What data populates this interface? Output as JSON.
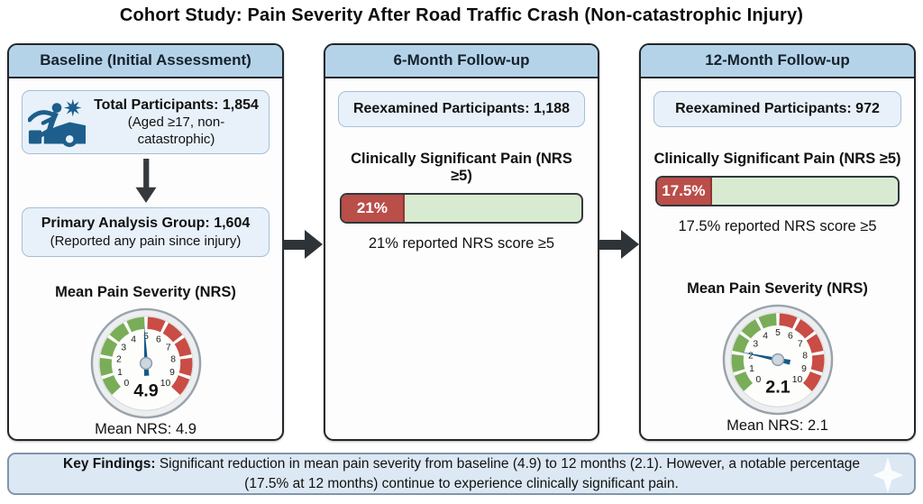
{
  "title": "Cohort Study: Pain Severity After Road Traffic Crash (Non-catastrophic Injury)",
  "colors": {
    "header_bg": "#b5d3e8",
    "panel_border": "#20262b",
    "box_bg": "#e8f1fa",
    "box_border": "#a3bfd6",
    "bar_red": "#ba4e49",
    "bar_green_bg": "#d8ebd1",
    "gauge_green": "#7aad58",
    "gauge_red": "#c94c45",
    "needle_blue": "#155a86",
    "icon_blue": "#1d5e8c",
    "footer_bg": "#dce8f3",
    "arrow_dark": "#2e3338"
  },
  "panels": {
    "baseline": {
      "header": "Baseline (Initial Assessment)",
      "total_box": {
        "line1": "Total Participants: 1,854",
        "line2": "(Aged ≥17, non-catastrophic)",
        "icon": "road-crash-icon"
      },
      "primary_box": {
        "line1": "Primary Analysis Group: 1,604",
        "line2": "(Reported any pain since injury)"
      },
      "gauge": {
        "title": "Mean Pain Severity (NRS)",
        "value": 4.9,
        "min": 0,
        "max": 10,
        "ticks": [
          0,
          1,
          2,
          3,
          4,
          5,
          6,
          7,
          8,
          9,
          10
        ],
        "green_range": [
          0,
          5
        ],
        "red_range": [
          5,
          10
        ],
        "caption": "Mean NRS: 4.9"
      }
    },
    "six_month": {
      "header": "6-Month Follow-up",
      "reexamined_box": "Reexamined Participants: 1,188",
      "pain_heading": "Clinically Significant Pain (NRS ≥5)",
      "bar": {
        "percent": 21,
        "label": "21%"
      },
      "caption": "21% reported NRS score ≥5"
    },
    "twelve_month": {
      "header": "12-Month Follow-up",
      "reexamined_box": "Reexamined Participants: 972",
      "pain_heading": "Clinically Significant Pain (NRS ≥5)",
      "bar": {
        "percent": 17.5,
        "label": "17.5%"
      },
      "caption": "17.5% reported NRS score ≥5",
      "gauge": {
        "title": "Mean Pain Severity (NRS)",
        "value": 2.1,
        "min": 0,
        "max": 10,
        "ticks": [
          0,
          1,
          2,
          3,
          4,
          5,
          6,
          7,
          8,
          9,
          10
        ],
        "green_range": [
          0,
          5
        ],
        "red_range": [
          5,
          10
        ],
        "caption": "Mean NRS: 2.1"
      }
    }
  },
  "key_findings": {
    "label": "Key Findings:",
    "text": "Significant reduction in mean pain severity from baseline (4.9) to 12 months (2.1). However, a notable percentage (17.5% at 12 months) continue to experience clinically significant pain."
  },
  "chart_data": [
    {
      "type": "gauge",
      "title": "Mean Pain Severity (NRS) — Baseline",
      "value": 4.9,
      "range": [
        0,
        10
      ],
      "green_zone": [
        0,
        5
      ],
      "red_zone": [
        5,
        10
      ]
    },
    {
      "type": "bar",
      "title": "Clinically Significant Pain (NRS ≥5) — 6-Month Follow-up",
      "categories": [
        "NRS ≥5"
      ],
      "values": [
        21
      ],
      "unit": "%"
    },
    {
      "type": "bar",
      "title": "Clinically Significant Pain (NRS ≥5) — 12-Month Follow-up",
      "categories": [
        "NRS ≥5"
      ],
      "values": [
        17.5
      ],
      "unit": "%"
    },
    {
      "type": "gauge",
      "title": "Mean Pain Severity (NRS) — 12-Month Follow-up",
      "value": 2.1,
      "range": [
        0,
        10
      ],
      "green_zone": [
        0,
        5
      ],
      "red_zone": [
        5,
        10
      ]
    }
  ]
}
